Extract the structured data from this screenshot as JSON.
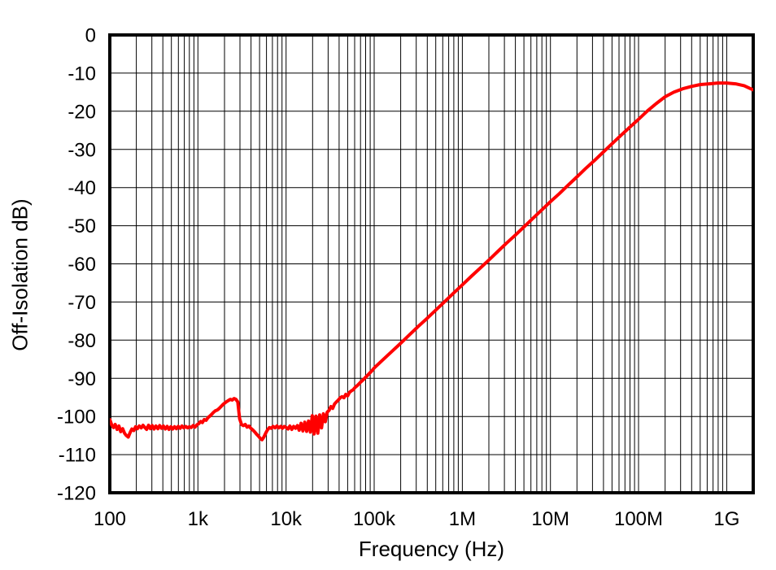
{
  "chart_data": {
    "type": "line",
    "title": "",
    "xlabel": "Frequency (Hz)",
    "ylabel": "Off-Isolation dB)",
    "x_scale": "log",
    "xlim_hz": [
      100,
      2000000000
    ],
    "ylim_db": [
      -120,
      0
    ],
    "y_tick_step_db": 10,
    "grid": {
      "horizontal_major": true,
      "vertical_log_minor": true,
      "legend_position": "none"
    },
    "x_ticks": [
      {
        "hz": 100,
        "label": "100"
      },
      {
        "hz": 1000,
        "label": "1k"
      },
      {
        "hz": 10000,
        "label": "10k"
      },
      {
        "hz": 100000,
        "label": "100k"
      },
      {
        "hz": 1000000,
        "label": "1M"
      },
      {
        "hz": 10000000,
        "label": "10M"
      },
      {
        "hz": 100000000,
        "label": "100M"
      },
      {
        "hz": 1000000000,
        "label": "1G"
      }
    ],
    "y_ticks": [
      {
        "db": 0,
        "label": "0"
      },
      {
        "db": -10,
        "label": "-10"
      },
      {
        "db": -20,
        "label": "-20"
      },
      {
        "db": -30,
        "label": "-30"
      },
      {
        "db": -40,
        "label": "-40"
      },
      {
        "db": -50,
        "label": "-50"
      },
      {
        "db": -60,
        "label": "-60"
      },
      {
        "db": -70,
        "label": "-70"
      },
      {
        "db": -80,
        "label": "-80"
      },
      {
        "db": -90,
        "label": "-90"
      },
      {
        "db": -100,
        "label": "-100"
      },
      {
        "db": -110,
        "label": "-110"
      },
      {
        "db": -120,
        "label": "-120"
      }
    ],
    "series": [
      {
        "name": "off-isolation",
        "color": "#ff0000",
        "points_hz_db": [
          [
            100,
            -100.8
          ],
          [
            105,
            -102.2
          ],
          [
            110,
            -102.9
          ],
          [
            115,
            -102.1
          ],
          [
            121,
            -103.4
          ],
          [
            127,
            -102.5
          ],
          [
            133,
            -104.0
          ],
          [
            140,
            -103.2
          ],
          [
            147,
            -104.4
          ],
          [
            154,
            -105.0
          ],
          [
            162,
            -105.4
          ],
          [
            170,
            -104.2
          ],
          [
            178,
            -103.3
          ],
          [
            187,
            -103.7
          ],
          [
            196,
            -102.7
          ],
          [
            206,
            -103.2
          ],
          [
            216,
            -102.5
          ],
          [
            227,
            -103.0
          ],
          [
            238,
            -102.3
          ],
          [
            250,
            -102.9
          ],
          [
            262,
            -103.4
          ],
          [
            275,
            -102.3
          ],
          [
            289,
            -103.2
          ],
          [
            303,
            -102.4
          ],
          [
            318,
            -103.3
          ],
          [
            334,
            -102.5
          ],
          [
            351,
            -103.2
          ],
          [
            368,
            -102.4
          ],
          [
            386,
            -103.1
          ],
          [
            406,
            -102.5
          ],
          [
            426,
            -103.3
          ],
          [
            447,
            -102.6
          ],
          [
            469,
            -103.4
          ],
          [
            492,
            -102.7
          ],
          [
            517,
            -103.3
          ],
          [
            543,
            -102.7
          ],
          [
            570,
            -103.2
          ],
          [
            598,
            -102.6
          ],
          [
            628,
            -103.1
          ],
          [
            659,
            -102.5
          ],
          [
            692,
            -103.0
          ],
          [
            726,
            -102.6
          ],
          [
            762,
            -103.0
          ],
          [
            800,
            -102.7
          ],
          [
            840,
            -102.9
          ],
          [
            882,
            -102.4
          ],
          [
            926,
            -102.8
          ],
          [
            972,
            -102.2
          ],
          [
            1020,
            -101.9
          ],
          [
            1071,
            -101.3
          ],
          [
            1124,
            -101.6
          ],
          [
            1180,
            -100.8
          ],
          [
            1239,
            -101.0
          ],
          [
            1301,
            -100.3
          ],
          [
            1366,
            -99.9
          ],
          [
            1434,
            -99.4
          ],
          [
            1505,
            -98.9
          ],
          [
            1580,
            -98.5
          ],
          [
            1659,
            -98.3
          ],
          [
            1742,
            -97.9
          ],
          [
            1828,
            -97.4
          ],
          [
            1919,
            -96.9
          ],
          [
            2015,
            -96.5
          ],
          [
            2115,
            -96.1
          ],
          [
            2221,
            -95.8
          ],
          [
            2331,
            -95.5
          ],
          [
            2448,
            -95.7
          ],
          [
            2570,
            -95.3
          ],
          [
            2698,
            -95.5
          ],
          [
            2832,
            -96.2
          ],
          [
            2973,
            -100.6
          ],
          [
            3121,
            -102.1
          ],
          [
            3277,
            -102.4
          ],
          [
            3440,
            -102.1
          ],
          [
            3612,
            -102.8
          ],
          [
            3792,
            -102.5
          ],
          [
            3981,
            -103.1
          ],
          [
            4179,
            -103.5
          ],
          [
            4388,
            -104.0
          ],
          [
            4606,
            -104.6
          ],
          [
            4836,
            -105.1
          ],
          [
            5077,
            -105.7
          ],
          [
            5330,
            -106.1
          ],
          [
            5595,
            -105.4
          ],
          [
            5874,
            -104.4
          ],
          [
            6167,
            -103.5
          ],
          [
            6474,
            -102.9
          ],
          [
            6797,
            -103.1
          ],
          [
            7136,
            -102.6
          ],
          [
            7491,
            -103.0
          ],
          [
            7864,
            -102.5
          ],
          [
            8256,
            -103.0
          ],
          [
            8668,
            -102.6
          ],
          [
            9100,
            -103.1
          ],
          [
            9553,
            -102.6
          ],
          [
            10030,
            -102.9
          ],
          [
            10530,
            -103.3
          ],
          [
            11054,
            -102.5
          ],
          [
            11605,
            -103.4
          ],
          [
            12183,
            -102.6
          ],
          [
            12790,
            -103.1
          ],
          [
            13428,
            -102.4
          ],
          [
            14097,
            -103.6
          ],
          [
            14800,
            -101.8
          ],
          [
            15537,
            -103.8
          ],
          [
            16312,
            -101.5
          ],
          [
            17125,
            -103.9
          ],
          [
            17978,
            -101.2
          ],
          [
            18874,
            -104.1
          ],
          [
            19815,
            -99.8
          ],
          [
            20803,
            -104.6
          ],
          [
            21840,
            -99.9
          ],
          [
            22929,
            -104.4
          ],
          [
            24072,
            -99.6
          ],
          [
            25272,
            -103.0
          ],
          [
            26531,
            -99.3
          ],
          [
            27854,
            -101.4
          ],
          [
            29243,
            -98.9
          ],
          [
            30701,
            -98.4
          ],
          [
            32232,
            -97.4
          ],
          [
            33839,
            -97.9
          ],
          [
            35526,
            -96.7
          ],
          [
            37297,
            -96.2
          ],
          [
            39157,
            -95.7
          ],
          [
            41109,
            -95.1
          ],
          [
            43159,
            -94.8
          ],
          [
            45311,
            -95.1
          ],
          [
            47570,
            -94.2
          ],
          [
            49942,
            -94.6
          ],
          [
            52432,
            -93.7
          ],
          [
            55046,
            -93.3
          ],
          [
            57791,
            -93.0
          ],
          [
            60673,
            -92.4
          ],
          [
            63698,
            -92.0
          ],
          [
            66874,
            -91.5
          ],
          [
            70208,
            -91.0
          ],
          [
            75000,
            -90.4
          ],
          [
            79433,
            -89.8
          ],
          [
            84140,
            -89.2
          ],
          [
            89125,
            -88.6
          ],
          [
            94406,
            -88.0
          ],
          [
            100000,
            -87.3
          ],
          [
            126000,
            -85.1
          ],
          [
            158000,
            -83.0
          ],
          [
            200000,
            -80.8
          ],
          [
            251000,
            -78.6
          ],
          [
            316000,
            -76.4
          ],
          [
            398000,
            -74.3
          ],
          [
            501000,
            -72.1
          ],
          [
            631000,
            -69.9
          ],
          [
            794000,
            -67.7
          ],
          [
            1000000,
            -65.5
          ],
          [
            1260000,
            -63.3
          ],
          [
            1580000,
            -61.2
          ],
          [
            2000000,
            -59.0
          ],
          [
            2510000,
            -56.8
          ],
          [
            3160000,
            -54.6
          ],
          [
            3980000,
            -52.5
          ],
          [
            5010000,
            -50.3
          ],
          [
            6310000,
            -48.1
          ],
          [
            7940000,
            -45.9
          ],
          [
            10000000,
            -43.7
          ],
          [
            12600000,
            -41.6
          ],
          [
            15800000,
            -39.4
          ],
          [
            20000000,
            -37.2
          ],
          [
            25100000,
            -35.0
          ],
          [
            31600000,
            -32.9
          ],
          [
            39800000,
            -30.7
          ],
          [
            50100000,
            -28.5
          ],
          [
            63100000,
            -26.3
          ],
          [
            79400000,
            -24.2
          ],
          [
            100000000,
            -22.1
          ],
          [
            126000000,
            -19.9
          ],
          [
            158000000,
            -18.0
          ],
          [
            200000000,
            -16.2
          ],
          [
            251000000,
            -15.0
          ],
          [
            316000000,
            -14.1
          ],
          [
            398000000,
            -13.5
          ],
          [
            501000000,
            -13.0
          ],
          [
            631000000,
            -12.8
          ],
          [
            794000000,
            -12.6
          ],
          [
            1000000000,
            -12.6
          ],
          [
            1260000000,
            -12.8
          ],
          [
            1580000000,
            -13.3
          ],
          [
            2000000000,
            -14.4
          ]
        ]
      }
    ]
  },
  "colors": {
    "curve": "#ff0000",
    "grid": "#000000",
    "frame": "#000000",
    "text": "#000000",
    "background": "#ffffff"
  }
}
